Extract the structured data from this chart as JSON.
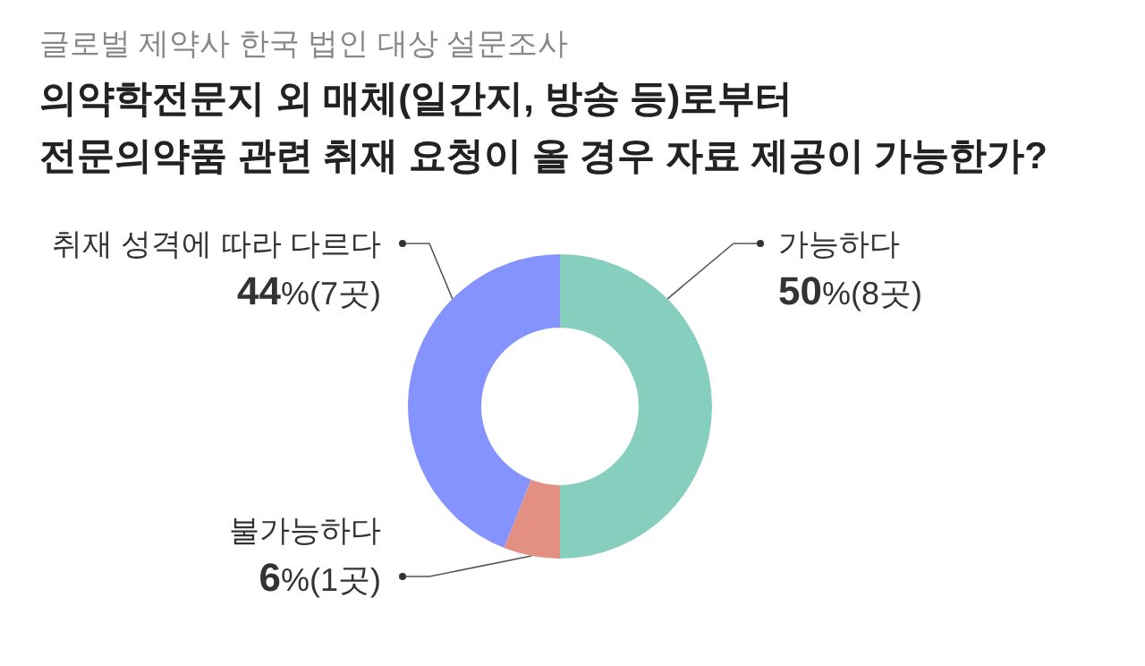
{
  "chart_data": {
    "type": "donut",
    "subtitle": "글로벌 제약사 한국 법인 대상 설문조사",
    "title": "의약학전문지 외 매체(일간지, 방송 등)로부터\n전문의약품 관련 취재 요청이 올 경우 자료 제공이 가능한가?",
    "categories": [
      "가능하다",
      "불가능하다",
      "취재 성격에 따라 다르다"
    ],
    "values": [
      50,
      6,
      44
    ],
    "colors": [
      "#86cfbf",
      "#e38f82",
      "#8593fe"
    ],
    "value_labels": [
      "50%(8곳)",
      "6%(1곳)",
      "44%(7곳)"
    ]
  }
}
